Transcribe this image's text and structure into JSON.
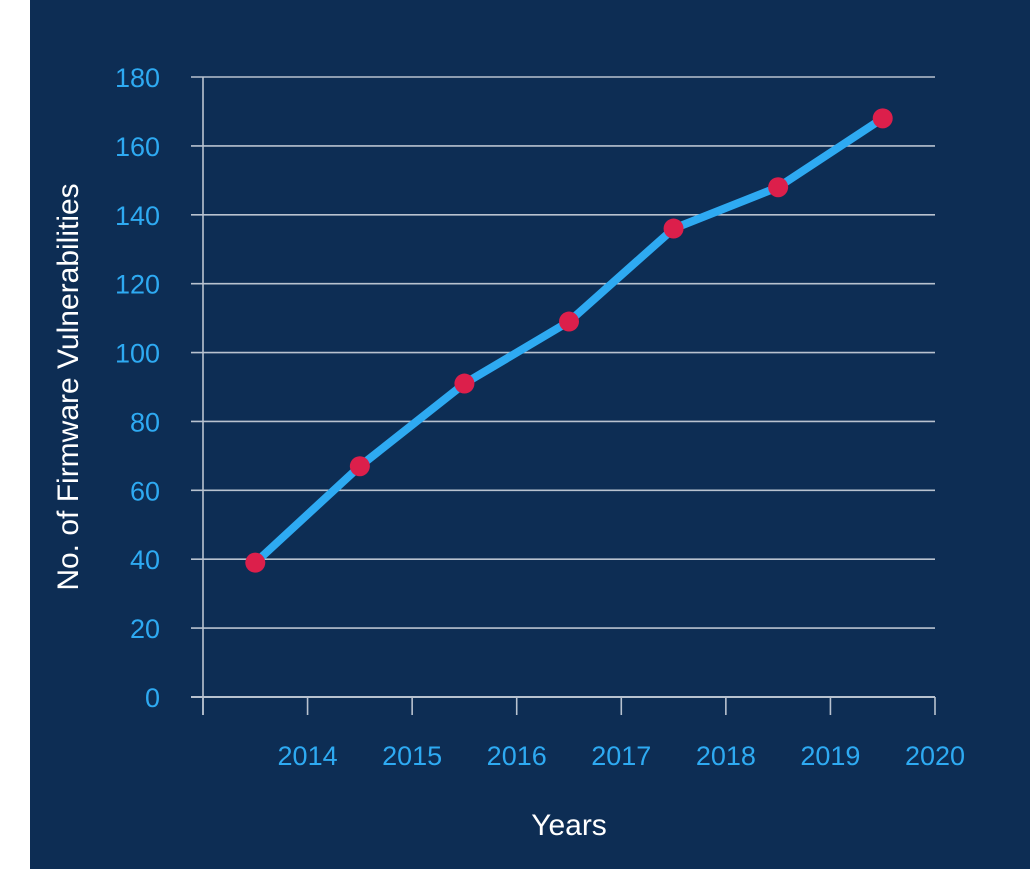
{
  "chart_data": {
    "type": "line",
    "title": "",
    "xlabel": "Years",
    "ylabel": "No. of Firmware Vulnerabilities",
    "categories": [
      "2014",
      "2015",
      "2016",
      "2017",
      "2018",
      "2019",
      "2020"
    ],
    "series": [
      {
        "values": [
          39,
          67,
          91,
          109,
          136,
          148,
          168
        ]
      }
    ],
    "ylim": [
      0,
      180
    ],
    "yticks": [
      0,
      20,
      40,
      60,
      80,
      100,
      120,
      140,
      160,
      180
    ],
    "grid": true,
    "legend": "none",
    "colors": {
      "background": "#0d2d54",
      "line": "#2eaaf2",
      "marker": "#dc1f4b",
      "tick_text": "#2eaaf2",
      "axis_title": "#ffffff",
      "grid": "#b8c2cf"
    }
  }
}
